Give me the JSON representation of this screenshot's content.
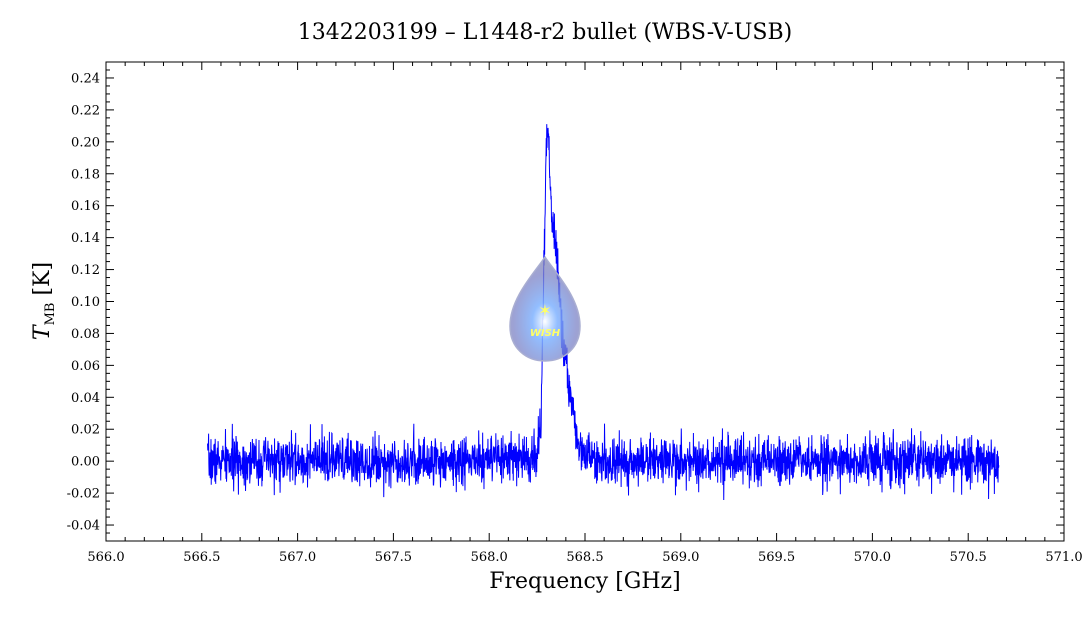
{
  "chart_data": {
    "type": "line",
    "title": "1342203199 – L1448-r2 bullet (WBS-V-USB)",
    "xlabel": "Frequency [GHz]",
    "ylabel_main": "T",
    "ylabel_sub": "MB",
    "ylabel_unit": "[K]",
    "xlim": [
      566.0,
      571.0
    ],
    "ylim": [
      -0.05,
      0.25
    ],
    "xticks": [
      566.0,
      566.5,
      567.0,
      567.5,
      568.0,
      568.5,
      569.0,
      569.5,
      570.0,
      570.5,
      571.0
    ],
    "xtick_labels": [
      "566.0",
      "566.5",
      "567.0",
      "567.5",
      "568.0",
      "568.5",
      "569.0",
      "569.5",
      "570.0",
      "570.5",
      "571.0"
    ],
    "yticks": [
      -0.04,
      -0.02,
      0.0,
      0.02,
      0.04,
      0.06,
      0.08,
      0.1,
      0.12,
      0.14,
      0.16,
      0.18,
      0.2,
      0.22,
      0.24
    ],
    "ytick_labels": [
      "-0.04",
      "-0.02",
      "0.00",
      "0.02",
      "0.04",
      "0.06",
      "0.08",
      "0.10",
      "0.12",
      "0.14",
      "0.16",
      "0.18",
      "0.20",
      "0.22",
      "0.24"
    ],
    "grid": false,
    "series_color": "#0000ff",
    "series": [
      {
        "x": [
          566.53,
          566.7,
          566.9,
          567.1,
          567.3,
          567.5,
          567.7,
          567.9,
          568.1,
          568.2,
          568.25,
          568.27,
          568.28,
          568.29,
          568.3,
          568.31,
          568.32,
          568.33,
          568.35,
          568.36,
          568.37,
          568.38,
          568.39,
          568.4,
          568.42,
          568.44,
          568.46,
          568.5,
          568.55,
          568.7,
          569.0,
          569.2,
          569.4,
          569.6,
          569.8,
          570.0,
          570.2,
          570.4,
          570.66
        ],
        "y": [
          0.0,
          0.0,
          0.0,
          0.0,
          0.0,
          0.0,
          0.0,
          0.0,
          0.001,
          0.002,
          0.005,
          0.02,
          0.09,
          0.14,
          0.215,
          0.2,
          0.165,
          0.15,
          0.13,
          0.12,
          0.1,
          0.08,
          0.07,
          0.06,
          0.045,
          0.03,
          0.015,
          0.004,
          0.001,
          0.0,
          0.0,
          0.0,
          0.0,
          0.0,
          0.0,
          0.0,
          0.0,
          0.0,
          0.0
        ],
        "noise_rms": 0.0075
      }
    ],
    "logo_text": "WISH"
  }
}
